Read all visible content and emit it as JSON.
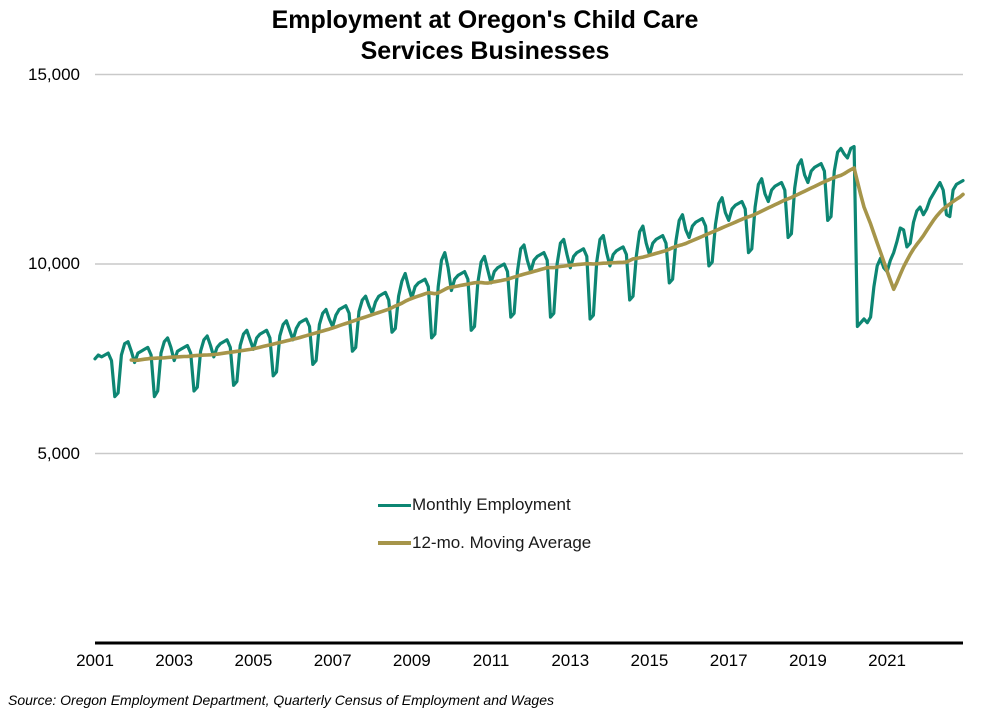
{
  "title": "Employment at Oregon's Child Care\nServices Businesses",
  "source": "Source: Oregon Employment Department, Quarterly Census of Employment and Wages",
  "colors": {
    "monthly": "#0d8673",
    "moving_average": "#a6954a",
    "gridline": "#c9c9c9",
    "axis": "#000000"
  },
  "legend": {
    "position": "bottom-center",
    "items": [
      {
        "label": "Monthly Employment",
        "series": "monthly"
      },
      {
        "label": "12-mo. Moving Average",
        "series": "moving_average"
      }
    ]
  },
  "chart_data": {
    "type": "line",
    "title": "Employment at Oregon's Child Care Services Businesses",
    "xlabel": "",
    "ylabel": "",
    "x_start": "2001-01",
    "x_frequency": "monthly",
    "ylim": [
      0,
      15000
    ],
    "grid": "horizontal",
    "y_ticks": [
      {
        "label": "15,000",
        "value": 15000
      },
      {
        "label": "10,000",
        "value": 10000
      },
      {
        "label": "5,000",
        "value": 5000
      }
    ],
    "x_ticks": [
      {
        "label": "2001",
        "month_index": 0
      },
      {
        "label": "2003",
        "month_index": 24
      },
      {
        "label": "2005",
        "month_index": 48
      },
      {
        "label": "2007",
        "month_index": 72
      },
      {
        "label": "2009",
        "month_index": 96
      },
      {
        "label": "2011",
        "month_index": 120
      },
      {
        "label": "2013",
        "month_index": 144
      },
      {
        "label": "2015",
        "month_index": 168
      },
      {
        "label": "2017",
        "month_index": 192
      },
      {
        "label": "2019",
        "month_index": 216
      },
      {
        "label": "2021",
        "month_index": 240
      }
    ],
    "series": [
      {
        "name": "Monthly Employment",
        "values": [
          7500,
          7600,
          7550,
          7600,
          7650,
          7450,
          6500,
          6600,
          7600,
          7900,
          7950,
          7700,
          7400,
          7650,
          7700,
          7750,
          7800,
          7600,
          6500,
          6650,
          7650,
          7950,
          8050,
          7800,
          7450,
          7700,
          7750,
          7800,
          7850,
          7650,
          6650,
          6750,
          7700,
          8000,
          8100,
          7850,
          7550,
          7800,
          7900,
          7950,
          8000,
          7800,
          6800,
          6900,
          7850,
          8150,
          8250,
          8000,
          7750,
          8050,
          8150,
          8200,
          8250,
          8050,
          7050,
          7150,
          8100,
          8400,
          8500,
          8250,
          8000,
          8300,
          8450,
          8500,
          8550,
          8350,
          7350,
          7450,
          8400,
          8700,
          8800,
          8550,
          8350,
          8650,
          8800,
          8850,
          8900,
          8700,
          7700,
          7800,
          8750,
          9050,
          9150,
          8900,
          8700,
          9000,
          9150,
          9200,
          9250,
          9050,
          8200,
          8300,
          9150,
          9550,
          9750,
          9400,
          9100,
          9400,
          9500,
          9550,
          9600,
          9400,
          8050,
          8150,
          9400,
          10100,
          10300,
          9900,
          9300,
          9600,
          9700,
          9750,
          9800,
          9600,
          8250,
          8350,
          9500,
          10050,
          10200,
          9850,
          9500,
          9800,
          9900,
          9950,
          10000,
          9800,
          8600,
          8700,
          9800,
          10400,
          10500,
          10100,
          9800,
          10100,
          10200,
          10250,
          10300,
          10100,
          8600,
          8700,
          10000,
          10550,
          10650,
          10250,
          9900,
          10200,
          10300,
          10350,
          10400,
          10200,
          8550,
          8650,
          10050,
          10650,
          10750,
          10300,
          9950,
          10250,
          10350,
          10400,
          10450,
          10250,
          9050,
          9150,
          10200,
          10850,
          11000,
          10550,
          10250,
          10550,
          10650,
          10700,
          10750,
          10550,
          9500,
          9600,
          10600,
          11150,
          11300,
          10900,
          10700,
          11000,
          11100,
          11150,
          11200,
          11000,
          9950,
          10050,
          11050,
          11600,
          11750,
          11350,
          11150,
          11450,
          11550,
          11600,
          11650,
          11450,
          10300,
          10400,
          11500,
          12100,
          12250,
          11850,
          11650,
          11950,
          12050,
          12100,
          12150,
          11950,
          10700,
          10800,
          12000,
          12600,
          12750,
          12350,
          12150,
          12450,
          12550,
          12600,
          12650,
          12450,
          11150,
          11250,
          12450,
          12950,
          13050,
          12900,
          12800,
          13050,
          13100,
          8350,
          8450,
          8550,
          8450,
          8600,
          9400,
          9950,
          10150,
          9900,
          9800,
          10100,
          10300,
          10600,
          10950,
          10900,
          10450,
          10550,
          11100,
          11400,
          11500,
          11300,
          11450,
          11700,
          11850,
          12000,
          12150,
          11950,
          11300,
          11250,
          11950,
          12100,
          12150,
          12200
        ]
      },
      {
        "name": "12-mo. Moving Average",
        "derived": "trailing 12-month moving average of Monthly Employment, plotted from the 12th month (Dec 2001) onward"
      }
    ]
  }
}
